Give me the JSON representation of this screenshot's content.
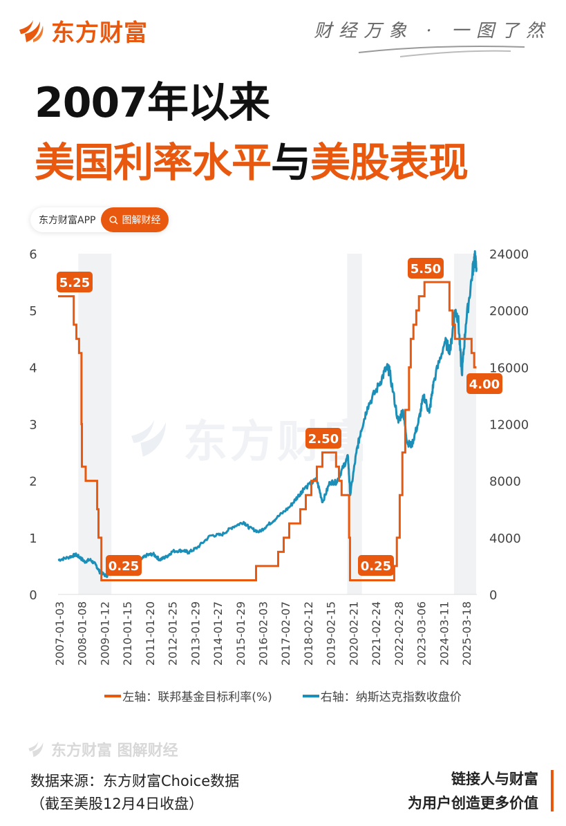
{
  "brand": {
    "name": "东方财富",
    "logo_icon": "flame-wing-icon",
    "color": "#e8580e"
  },
  "slogan": "财经万象 · 一图了然",
  "title": {
    "line1": "2007年以来",
    "line2_part1": "美国利率水平",
    "line2_part2": "与",
    "line2_part3": "美股表现"
  },
  "pill": {
    "app_label": "东方财富APP",
    "button_label": "图解财经",
    "button_icon": "search-icon"
  },
  "watermark": {
    "center": "东方财富",
    "bottom": "东方财富 图解财经"
  },
  "legend": {
    "left": {
      "label": "左轴：联邦基金目标利率(%)",
      "color": "#e8580e"
    },
    "right": {
      "label": "右轴：纳斯达克指数收盘价",
      "color": "#1b8fb8"
    }
  },
  "footer": {
    "source_line1": "数据来源：东方财富Choice数据",
    "source_line2": "（截至美股12月4日收盘）",
    "tagline1": "链接人与财富",
    "tagline2": "为用户创造更多价值"
  },
  "chart_data": {
    "type": "line",
    "title": "2007年以来美国利率水平与美股表现",
    "x_tick_labels": [
      "2007-01-03",
      "2008-01-08",
      "2009-01-12",
      "2010-01-15",
      "2011-01-20",
      "2012-01-25",
      "2013-01-29",
      "2014-01-27",
      "2015-01-29",
      "2016-02-03",
      "2017-02-07",
      "2018-02-12",
      "2019-02-15",
      "2020-02-21",
      "2021-02-24",
      "2022-02-28",
      "2023-03-06",
      "2024-03-11",
      "2025-03-18"
    ],
    "left_axis": {
      "label": "联邦基金目标利率(%)",
      "ticks": [
        "0",
        "1",
        "2",
        "3",
        "4",
        "5",
        "6"
      ],
      "ylim": [
        0,
        6
      ]
    },
    "right_axis": {
      "label": "纳斯达克指数收盘价",
      "ticks": [
        "0",
        "4000",
        "8000",
        "12000",
        "16000",
        "20000",
        "24000"
      ],
      "ylim": [
        0,
        24000
      ]
    },
    "grid": false,
    "legend_position": "bottom",
    "shaded_periods": [
      [
        "2007-12",
        "2009-06"
      ],
      [
        "2020-02",
        "2020-10"
      ],
      [
        "2024-12",
        "2025-12"
      ]
    ],
    "series": [
      {
        "name": "联邦基金目标利率(%)",
        "axis": "left",
        "step": true,
        "color": "#e8580e",
        "points": [
          [
            "2007.00",
            5.25
          ],
          [
            "2007.71",
            4.75
          ],
          [
            "2007.83",
            4.5
          ],
          [
            "2007.95",
            4.25
          ],
          [
            "2008.06",
            3.0
          ],
          [
            "2008.08",
            2.25
          ],
          [
            "2008.25",
            2.0
          ],
          [
            "2008.33",
            2.0
          ],
          [
            "2008.77",
            1.5
          ],
          [
            "2008.83",
            1.0
          ],
          [
            "2008.96",
            0.25
          ],
          [
            "2015.96",
            0.5
          ],
          [
            "2016.96",
            0.75
          ],
          [
            "2017.21",
            1.0
          ],
          [
            "2017.46",
            1.25
          ],
          [
            "2017.96",
            1.5
          ],
          [
            "2018.21",
            1.75
          ],
          [
            "2018.46",
            2.0
          ],
          [
            "2018.71",
            2.25
          ],
          [
            "2018.96",
            2.5
          ],
          [
            "2019.58",
            2.25
          ],
          [
            "2019.71",
            2.0
          ],
          [
            "2019.83",
            1.75
          ],
          [
            "2020.17",
            1.0
          ],
          [
            "2020.21",
            0.25
          ],
          [
            "2022.21",
            0.5
          ],
          [
            "2022.33",
            1.0
          ],
          [
            "2022.46",
            1.75
          ],
          [
            "2022.58",
            2.5
          ],
          [
            "2022.71",
            3.25
          ],
          [
            "2022.88",
            4.0
          ],
          [
            "2022.96",
            4.5
          ],
          [
            "2023.08",
            4.75
          ],
          [
            "2023.21",
            5.0
          ],
          [
            "2023.33",
            5.25
          ],
          [
            "2023.58",
            5.5
          ],
          [
            "2024.71",
            5.0
          ],
          [
            "2024.85",
            4.75
          ],
          [
            "2024.96",
            4.5
          ],
          [
            "2025.71",
            4.25
          ],
          [
            "2025.83",
            4.0
          ],
          [
            "2025.93",
            4.0
          ]
        ],
        "annotations": [
          {
            "label": "5.25",
            "x": "2007.00",
            "y": 5.25
          },
          {
            "label": "0.25",
            "x": "2009.20",
            "y": 0.25
          },
          {
            "label": "2.50",
            "x": "2019.00",
            "y": 2.5
          },
          {
            "label": "0.25",
            "x": "2020.60",
            "y": 0.25
          },
          {
            "label": "5.50",
            "x": "2023.60",
            "y": 5.5
          },
          {
            "label": "4.00",
            "x": "2025.93",
            "y": 4.0
          }
        ]
      },
      {
        "name": "纳斯达克指数收盘价",
        "axis": "right",
        "color": "#1b8fb8",
        "points": [
          [
            "2007.00",
            2420
          ],
          [
            "2007.45",
            2600
          ],
          [
            "2007.80",
            2800
          ],
          [
            "2008.00",
            2600
          ],
          [
            "2008.20",
            2300
          ],
          [
            "2008.45",
            2450
          ],
          [
            "2008.70",
            2100
          ],
          [
            "2008.90",
            1550
          ],
          [
            "2009.20",
            1300
          ],
          [
            "2009.40",
            1750
          ],
          [
            "2009.70",
            2100
          ],
          [
            "2010.00",
            2300
          ],
          [
            "2010.40",
            2200
          ],
          [
            "2010.70",
            2400
          ],
          [
            "2011.00",
            2750
          ],
          [
            "2011.30",
            2850
          ],
          [
            "2011.60",
            2450
          ],
          [
            "2011.90",
            2650
          ],
          [
            "2012.20",
            3050
          ],
          [
            "2012.70",
            3100
          ],
          [
            "2012.90",
            2950
          ],
          [
            "2013.30",
            3300
          ],
          [
            "2013.90",
            4150
          ],
          [
            "2014.40",
            4200
          ],
          [
            "2014.90",
            4750
          ],
          [
            "2015.40",
            5100
          ],
          [
            "2015.65",
            4700
          ],
          [
            "2016.10",
            4400
          ],
          [
            "2016.50",
            4900
          ],
          [
            "2016.90",
            5400
          ],
          [
            "2017.50",
            6200
          ],
          [
            "2017.90",
            7000
          ],
          [
            "2018.10",
            7400
          ],
          [
            "2018.70",
            8100
          ],
          [
            "2018.97",
            6500
          ],
          [
            "2019.30",
            7900
          ],
          [
            "2019.60",
            7900
          ],
          [
            "2019.90",
            8950
          ],
          [
            "2020.12",
            9700
          ],
          [
            "2020.22",
            7000
          ],
          [
            "2020.50",
            10000
          ],
          [
            "2020.70",
            11500
          ],
          [
            "2021.00",
            13200
          ],
          [
            "2021.50",
            14700
          ],
          [
            "2021.87",
            16000
          ],
          [
            "2022.00",
            15700
          ],
          [
            "2022.40",
            12100
          ],
          [
            "2022.60",
            13000
          ],
          [
            "2022.80",
            10700
          ],
          [
            "2023.00",
            10500
          ],
          [
            "2023.30",
            12100
          ],
          [
            "2023.55",
            14000
          ],
          [
            "2023.80",
            12800
          ],
          [
            "2024.00",
            15000
          ],
          [
            "2024.50",
            17800
          ],
          [
            "2024.75",
            17200
          ],
          [
            "2024.96",
            20000
          ],
          [
            "2025.10",
            19500
          ],
          [
            "2025.27",
            15500
          ],
          [
            "2025.45",
            19000
          ],
          [
            "2025.75",
            22700
          ],
          [
            "2025.85",
            23800
          ],
          [
            "2025.93",
            23000
          ]
        ]
      }
    ],
    "annotation_color": "#e8580e"
  }
}
